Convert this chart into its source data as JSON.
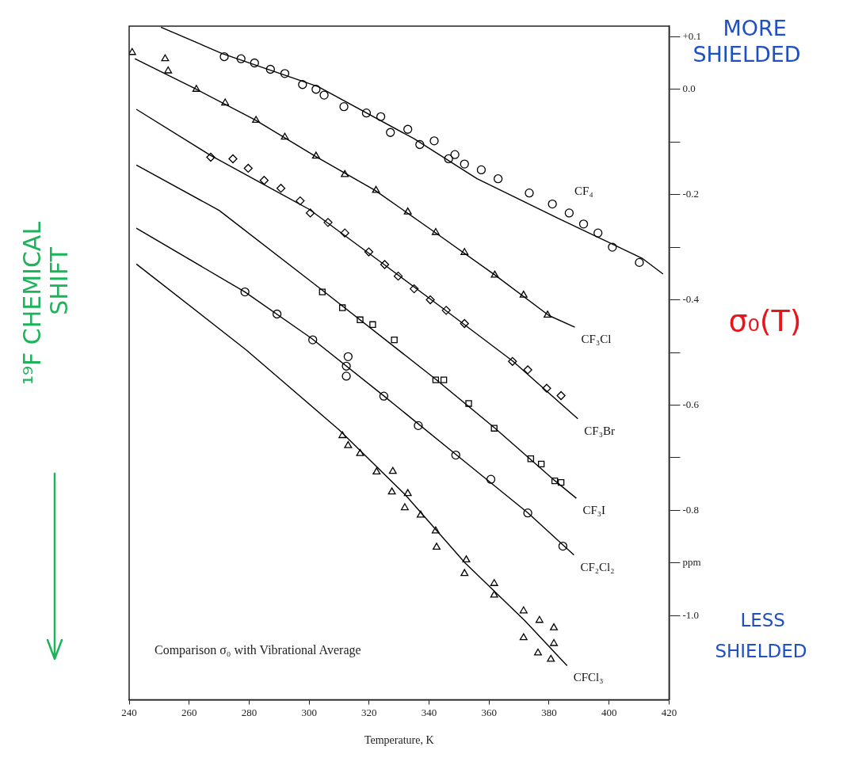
{
  "chart_data": {
    "type": "scatter",
    "xlabel": "Temperature, K",
    "ylabel": "σ₀(T)",
    "annotations": [
      "¹⁹F CHEMICAL SHIFT",
      "MORE SHIELDED",
      "LESS SHIELDED",
      "Comparison σ₀ with Vibrational Average"
    ],
    "xlim": [
      240,
      420
    ],
    "xticks": [
      240,
      260,
      280,
      300,
      320,
      340,
      360,
      380,
      400,
      420
    ],
    "ylim": [
      -1.16,
      0.12
    ],
    "yticks": [
      {
        "value": 0.1,
        "label": "+0.1"
      },
      {
        "value": 0.0,
        "label": "0.0"
      },
      {
        "value": -0.1,
        "label": null
      },
      {
        "value": -0.2,
        "label": "-0.2"
      },
      {
        "value": -0.3,
        "label": null
      },
      {
        "value": -0.4,
        "label": "-0.4"
      },
      {
        "value": -0.5,
        "label": null
      },
      {
        "value": -0.6,
        "label": "-0.6"
      },
      {
        "value": -0.7,
        "label": null
      },
      {
        "value": -0.8,
        "label": "-0.8"
      },
      {
        "value": -0.9,
        "label": "ppm"
      },
      {
        "value": -1.0,
        "label": "-1.0"
      }
    ],
    "grid": false,
    "legend": false,
    "series": [
      {
        "name": "CF₄",
        "type": "line",
        "color": "#000000",
        "marker": "none",
        "x": [
          250.6,
          271,
          303,
          335,
          356,
          383,
          411,
          418
        ],
        "values": [
          0.118,
          0.068,
          0.005,
          -0.094,
          -0.17,
          -0.245,
          -0.321,
          -0.351
        ]
      },
      {
        "type": "scatter",
        "color": "#000000",
        "marker": "circle",
        "x": [
          271.7,
          277.3,
          281.8,
          287.1,
          291.9,
          297.8,
          302.3,
          305,
          311.6,
          319.1,
          323.9,
          327.1,
          332.9,
          336.9,
          341.7,
          346.5,
          348.6,
          351.8,
          357.4,
          363,
          373.4,
          381.1,
          386.7,
          391.5,
          396.3,
          401.1,
          410.1
        ],
        "values": [
          0.062,
          0.058,
          0.05,
          0.038,
          0.03,
          0.009,
          0.0,
          -0.011,
          -0.033,
          -0.045,
          -0.052,
          -0.082,
          -0.076,
          -0.105,
          -0.098,
          -0.132,
          -0.124,
          -0.142,
          -0.153,
          -0.17,
          -0.197,
          -0.218,
          -0.235,
          -0.256,
          -0.273,
          -0.3,
          -0.329
        ]
      },
      {
        "name": "CF₃Cl",
        "type": "line",
        "color": "#000000",
        "marker": "none",
        "x": [
          241.9,
          262.4,
          282,
          302,
          322,
          342,
          362,
          380,
          388.6
        ],
        "values": [
          0.058,
          0.0,
          -0.058,
          -0.127,
          -0.192,
          -0.272,
          -0.353,
          -0.43,
          -0.452
        ]
      },
      {
        "type": "scatter",
        "color": "#000000",
        "marker": "triangle",
        "x": [
          241,
          252,
          253,
          262.4,
          272,
          282.3,
          291.9,
          302.3,
          311.9,
          322.3,
          332.9,
          342.2,
          351.8,
          361.9,
          371.5,
          379.5
        ],
        "values": [
          0.07,
          0.058,
          0.035,
          0.0,
          -0.026,
          -0.059,
          -0.091,
          -0.127,
          -0.162,
          -0.192,
          -0.233,
          -0.272,
          -0.31,
          -0.353,
          -0.391,
          -0.429
        ]
      },
      {
        "name": "CF₃Br",
        "type": "line",
        "color": "#000000",
        "marker": "none",
        "x": [
          242.4,
          267,
          300,
          325,
          345,
          368,
          389.6
        ],
        "values": [
          -0.038,
          -0.125,
          -0.228,
          -0.333,
          -0.418,
          -0.517,
          -0.626
        ]
      },
      {
        "type": "scatter",
        "color": "#000000",
        "marker": "diamond",
        "x": [
          267.2,
          274.6,
          279.7,
          285,
          290.6,
          297,
          300.4,
          306.3,
          311.9,
          319.9,
          325.2,
          329.7,
          335,
          340.4,
          345.7,
          351.8,
          367.8,
          372.9,
          379.2,
          384
        ],
        "values": [
          -0.129,
          -0.132,
          -0.15,
          -0.173,
          -0.188,
          -0.212,
          -0.235,
          -0.253,
          -0.273,
          -0.309,
          -0.333,
          -0.355,
          -0.379,
          -0.4,
          -0.42,
          -0.445,
          -0.517,
          -0.533,
          -0.568,
          -0.582
        ]
      },
      {
        "name": "CF₃I",
        "type": "line",
        "color": "#000000",
        "marker": "none",
        "x": [
          242.4,
          270,
          304,
          342,
          362,
          382,
          389.1
        ],
        "values": [
          -0.144,
          -0.23,
          -0.38,
          -0.55,
          -0.644,
          -0.744,
          -0.777
        ]
      },
      {
        "type": "scatter",
        "color": "#000000",
        "marker": "square",
        "x": [
          304.4,
          311.1,
          317,
          321.2,
          328.4,
          342.2,
          344.9,
          353.2,
          361.7,
          373.9,
          377.4,
          381.9,
          384
        ],
        "values": [
          -0.385,
          -0.415,
          -0.438,
          -0.447,
          -0.476,
          -0.552,
          -0.552,
          -0.597,
          -0.644,
          -0.702,
          -0.712,
          -0.744,
          -0.747
        ]
      },
      {
        "name": "CF₂Cl₂",
        "type": "line",
        "color": "#000000",
        "marker": "none",
        "x": [
          242.4,
          278.6,
          301,
          325,
          349,
          373,
          388.3
        ],
        "values": [
          -0.264,
          -0.385,
          -0.474,
          -0.583,
          -0.694,
          -0.805,
          -0.885
        ]
      },
      {
        "type": "scatter",
        "color": "#000000",
        "marker": "circle",
        "x": [
          278.6,
          289.3,
          301.2,
          312.4,
          312.4,
          313,
          324.9,
          336.4,
          348.9,
          360.6,
          372.9,
          384.6
        ],
        "values": [
          -0.385,
          -0.427,
          -0.476,
          -0.526,
          -0.545,
          -0.508,
          -0.583,
          -0.639,
          -0.695,
          -0.741,
          -0.805,
          -0.868
        ]
      },
      {
        "name": "CFCl₃",
        "type": "line",
        "color": "#000000",
        "marker": "none",
        "x": [
          242.4,
          279,
          310,
          332,
          352,
          372,
          386
        ],
        "values": [
          -0.332,
          -0.495,
          -0.647,
          -0.77,
          -0.9,
          -1.01,
          -1.095
        ]
      },
      {
        "type": "scatter",
        "color": "#000000",
        "marker": "triangle",
        "x": [
          311.1,
          313,
          317,
          322.5,
          327.9,
          327.6,
          332.9,
          331.9,
          337.2,
          342.2,
          342.5,
          352.4,
          351.8,
          361.7,
          361.7,
          371.5,
          371.5,
          376.8,
          381.6,
          381.6,
          376.3,
          380.6
        ],
        "values": [
          -0.658,
          -0.677,
          -0.692,
          -0.727,
          -0.726,
          -0.765,
          -0.768,
          -0.795,
          -0.809,
          -0.839,
          -0.87,
          -0.894,
          -0.92,
          -0.939,
          -0.961,
          -0.991,
          -1.042,
          -1.009,
          -1.023,
          -1.053,
          -1.071,
          -1.083
        ]
      }
    ]
  }
}
